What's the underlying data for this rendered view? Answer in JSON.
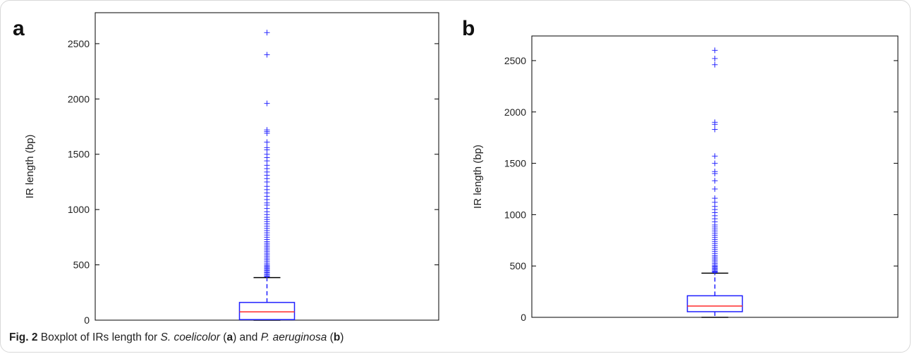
{
  "caption": {
    "fig_label": "Fig. 2",
    "text_1": " Boxplot of IRs length for ",
    "species_a": "S. coelicolor",
    "text_2": " (",
    "letter_a": "a",
    "text_3": ") and ",
    "species_b": "P. aeruginosa",
    "text_4": " (",
    "letter_b": "b",
    "text_5": ")"
  },
  "colors": {
    "box": "#1f1fff",
    "median": "#ff2a2a",
    "outlier": "#2b2bff",
    "whisker_cap": "#000000",
    "axes": "#000000"
  },
  "chart_data": [
    {
      "panel": "a",
      "type": "box",
      "ylabel": "IR length (bp)",
      "xlabel": "",
      "ylim": [
        0,
        2780
      ],
      "yticks": [
        0,
        500,
        1000,
        1500,
        2000,
        2500
      ],
      "grid": false,
      "box": {
        "whisker_low": 0,
        "q1": 5,
        "median": 75,
        "q3": 160,
        "whisker_high": 385
      },
      "outliers": [
        2600,
        2400,
        1960,
        1720,
        1705,
        1690,
        1610,
        1560,
        1540,
        1500,
        1470,
        1440,
        1400,
        1370,
        1340,
        1310,
        1280,
        1250,
        1210,
        1180,
        1150,
        1120,
        1090,
        1060,
        1040,
        1010,
        980,
        955,
        930,
        910,
        890,
        870,
        850,
        830,
        810,
        790,
        770,
        750,
        730,
        710,
        695,
        680,
        665,
        650,
        635,
        620,
        605,
        590,
        575,
        560,
        545,
        530,
        515,
        500,
        490,
        480,
        470,
        460,
        450,
        440,
        430,
        420,
        410,
        400,
        392
      ]
    },
    {
      "panel": "b",
      "type": "box",
      "ylabel": "IR length (bp)",
      "xlabel": "",
      "ylim": [
        0,
        2740
      ],
      "yticks": [
        0,
        500,
        1000,
        1500,
        2000,
        2500
      ],
      "grid": false,
      "box": {
        "whisker_low": 0,
        "q1": 55,
        "median": 110,
        "q3": 210,
        "whisker_high": 430
      },
      "outliers": [
        2600,
        2520,
        2460,
        1900,
        1880,
        1830,
        1570,
        1500,
        1420,
        1400,
        1330,
        1250,
        1160,
        1120,
        1080,
        1050,
        1020,
        990,
        960,
        930,
        900,
        880,
        860,
        840,
        820,
        800,
        780,
        760,
        740,
        720,
        700,
        680,
        660,
        640,
        620,
        600,
        585,
        570,
        555,
        540,
        525,
        510,
        500,
        490,
        480,
        470,
        460,
        450,
        442,
        436
      ]
    }
  ]
}
